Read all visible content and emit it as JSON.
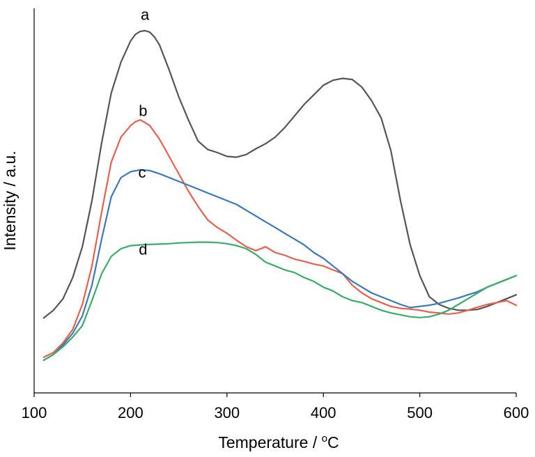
{
  "chart_data": {
    "type": "line",
    "title": "",
    "xlabel": "Temperature / ",
    "xlabel_unit": "C",
    "xlabel_degree": "o",
    "ylabel": "Intensity / a.u.",
    "xlim": [
      100,
      600
    ],
    "ylim": [
      0,
      100
    ],
    "xticks": [
      100,
      200,
      300,
      400,
      500,
      600
    ],
    "grid": false,
    "legend": "none",
    "series": [
      {
        "label": "a",
        "color": "#555555",
        "label_at": [
          215,
          97
        ],
        "x": [
          110,
          120,
          130,
          140,
          150,
          160,
          170,
          180,
          190,
          200,
          205,
          210,
          215,
          220,
          225,
          230,
          240,
          250,
          260,
          270,
          280,
          290,
          300,
          310,
          320,
          330,
          340,
          350,
          360,
          370,
          380,
          390,
          400,
          410,
          420,
          430,
          440,
          450,
          460,
          470,
          480,
          490,
          500,
          510,
          520,
          530,
          540,
          550,
          560,
          570,
          580,
          590,
          600
        ],
        "y": [
          19.5,
          21.5,
          24.5,
          30,
          38,
          50,
          65,
          78,
          86,
          91.5,
          93.2,
          94,
          94.2,
          93.8,
          92.5,
          90.5,
          84,
          77,
          71,
          65.5,
          63.3,
          62.5,
          61.5,
          61.3,
          62,
          63.5,
          64.8,
          66.5,
          69,
          72,
          75,
          77.5,
          80,
          81.3,
          81.8,
          81.5,
          79.5,
          76,
          71.5,
          63,
          50,
          38.5,
          30.5,
          25,
          23,
          22,
          21.5,
          21.5,
          21.7,
          22.5,
          23.5,
          24.5,
          25.5
        ]
      },
      {
        "label": "b",
        "color": "#e8604e",
        "label_at": [
          213,
          72
        ],
        "x": [
          110,
          120,
          130,
          140,
          150,
          160,
          170,
          180,
          190,
          200,
          205,
          210,
          215,
          220,
          230,
          240,
          250,
          260,
          270,
          280,
          290,
          300,
          310,
          320,
          330,
          340,
          350,
          360,
          370,
          380,
          390,
          400,
          410,
          420,
          430,
          440,
          450,
          460,
          470,
          480,
          490,
          500,
          510,
          520,
          530,
          540,
          550,
          560,
          570,
          580,
          590,
          600
        ],
        "y": [
          9.3,
          10.5,
          13,
          16.5,
          23,
          33,
          47,
          60,
          66.5,
          69.5,
          70.5,
          71,
          70.3,
          69.5,
          66,
          61.5,
          57,
          52.5,
          48.5,
          45,
          43,
          41.5,
          39.7,
          38,
          37,
          38,
          36.5,
          35.8,
          34.8,
          34.2,
          33.5,
          33,
          32,
          31,
          28,
          26,
          24.5,
          23.5,
          22.5,
          22,
          21.8,
          21.5,
          21,
          20.8,
          20.5,
          20.8,
          21.5,
          22.3,
          23,
          23.5,
          24,
          22.8
        ]
      },
      {
        "label": "c",
        "color": "#3a79ba",
        "label_at": [
          212,
          56
        ],
        "x": [
          110,
          120,
          130,
          140,
          150,
          160,
          170,
          180,
          190,
          200,
          210,
          220,
          230,
          240,
          250,
          260,
          270,
          280,
          290,
          300,
          310,
          320,
          330,
          340,
          350,
          360,
          370,
          380,
          390,
          400,
          410,
          420,
          430,
          440,
          450,
          460,
          470,
          480,
          490,
          500,
          510,
          520,
          530,
          540,
          550,
          560,
          570,
          580,
          590,
          600
        ],
        "y": [
          8.5,
          10,
          12.5,
          15.5,
          20,
          28,
          40,
          51,
          56,
          57.5,
          58,
          57.8,
          57,
          56,
          55,
          54,
          53,
          52,
          51,
          50,
          49,
          47.5,
          46,
          44.5,
          43,
          41.5,
          40,
          38.5,
          36.5,
          35,
          33,
          31,
          29,
          27.5,
          26,
          25,
          24,
          23,
          22.2,
          22.5,
          22.8,
          23.3,
          24,
          24.7,
          25.5,
          26.3,
          27.5,
          28.5,
          29.5,
          30.5
        ]
      },
      {
        "label": "d",
        "color": "#3aac6a",
        "label_at": [
          213,
          36
        ],
        "x": [
          110,
          120,
          130,
          140,
          150,
          160,
          170,
          180,
          190,
          200,
          210,
          220,
          230,
          240,
          250,
          260,
          270,
          280,
          290,
          300,
          310,
          320,
          330,
          340,
          350,
          360,
          370,
          380,
          390,
          400,
          410,
          420,
          430,
          440,
          450,
          460,
          470,
          480,
          490,
          500,
          510,
          520,
          530,
          540,
          550,
          560,
          570,
          580,
          590,
          600
        ],
        "y": [
          8.5,
          10,
          12,
          14.5,
          17.5,
          24,
          31,
          35.5,
          37.5,
          38.3,
          38.5,
          38.6,
          38.7,
          38.8,
          39,
          39.1,
          39.2,
          39.2,
          39.1,
          38.8,
          38.3,
          37.5,
          36,
          34,
          33,
          32,
          31.3,
          30,
          29,
          27.5,
          26.5,
          25,
          24,
          23.5,
          22.5,
          21.5,
          20.8,
          20.3,
          19.8,
          19.6,
          19.8,
          20.5,
          21.5,
          23,
          24.5,
          26,
          27.5,
          28.5,
          29.5,
          30.5
        ]
      }
    ]
  }
}
